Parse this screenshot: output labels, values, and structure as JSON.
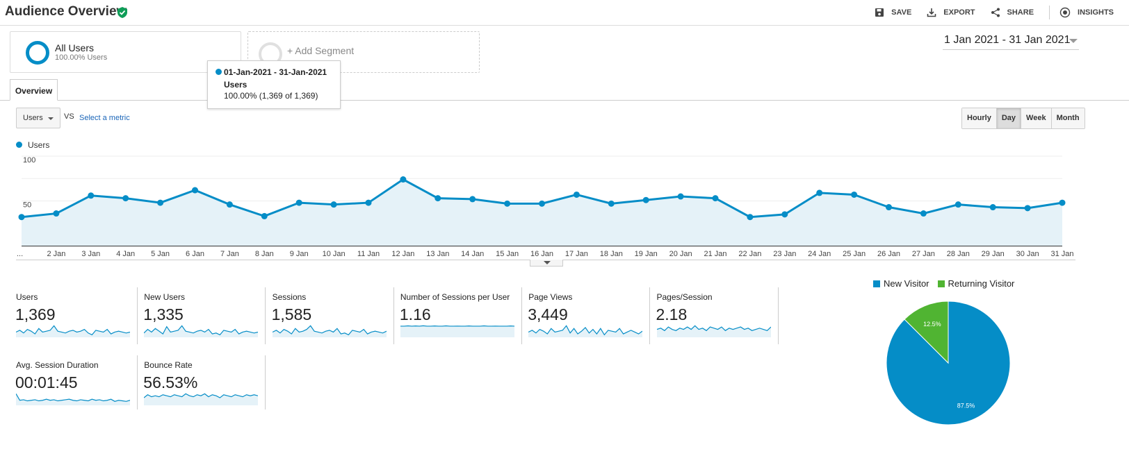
{
  "header": {
    "title": "Audience Overview",
    "actions": [
      {
        "label": "SAVE",
        "icon": "save-icon"
      },
      {
        "label": "EXPORT",
        "icon": "export-icon"
      },
      {
        "label": "SHARE",
        "icon": "share-icon"
      },
      {
        "label": "INSIGHTS",
        "icon": "insights-icon"
      }
    ]
  },
  "segment": {
    "name": "All Users",
    "sub": "100.00% Users"
  },
  "add_segment": "+ Add Segment",
  "date_range": "1 Jan 2021 - 31 Jan 2021",
  "tabs": [
    "Overview"
  ],
  "tooltip": {
    "range": "01-Jan-2021 - 31-Jan-2021",
    "metric": "Users",
    "value": "100.00% (1,369 of 1,369)"
  },
  "controls": {
    "metric": "Users",
    "vs": "VS",
    "select_metric": "Select a metric",
    "granularity": [
      "Hourly",
      "Day",
      "Week",
      "Month"
    ],
    "active_granularity": "Day"
  },
  "chart_data": {
    "type": "area",
    "series": [
      {
        "name": "Users",
        "values": [
          32,
          36,
          56,
          53,
          48,
          62,
          46,
          33,
          48,
          46,
          48,
          74,
          53,
          52,
          47,
          47,
          57,
          47,
          51,
          55,
          53,
          32,
          35,
          59,
          57,
          43,
          36,
          46,
          43,
          42,
          48
        ]
      }
    ],
    "x": [
      "...",
      "2 Jan",
      "3 Jan",
      "4 Jan",
      "5 Jan",
      "6 Jan",
      "7 Jan",
      "8 Jan",
      "9 Jan",
      "10 Jan",
      "11 Jan",
      "12 Jan",
      "13 Jan",
      "14 Jan",
      "15 Jan",
      "16 Jan",
      "17 Jan",
      "18 Jan",
      "19 Jan",
      "20 Jan",
      "21 Jan",
      "22 Jan",
      "23 Jan",
      "24 Jan",
      "25 Jan",
      "26 Jan",
      "27 Jan",
      "28 Jan",
      "29 Jan",
      "30 Jan",
      "31 Jan"
    ],
    "y_ticks": [
      "100",
      "50"
    ],
    "ylim": [
      0,
      100
    ],
    "color": "#058dc7",
    "fill": "#e5f2f8"
  },
  "metrics": [
    {
      "name": "Users",
      "value": "1,369",
      "spark": [
        5,
        7,
        4,
        8,
        6,
        3,
        9,
        5,
        6,
        7,
        12,
        6,
        5,
        4,
        6,
        7,
        5,
        6,
        8,
        4,
        2,
        7,
        6,
        5,
        8,
        3,
        5,
        6,
        5,
        4,
        5
      ]
    },
    {
      "name": "New Users",
      "value": "1,335",
      "spark": [
        4,
        8,
        5,
        9,
        6,
        3,
        11,
        5,
        6,
        7,
        12,
        6,
        5,
        4,
        6,
        7,
        5,
        8,
        3,
        4,
        2,
        7,
        6,
        5,
        8,
        3,
        5,
        6,
        5,
        4,
        5
      ]
    },
    {
      "name": "Sessions",
      "value": "1,585",
      "spark": [
        5,
        7,
        4,
        8,
        6,
        3,
        9,
        5,
        6,
        8,
        12,
        6,
        5,
        4,
        6,
        7,
        5,
        9,
        3,
        4,
        2,
        7,
        6,
        5,
        8,
        3,
        5,
        6,
        5,
        4,
        6
      ]
    },
    {
      "name": "Number of Sessions per User",
      "value": "1.16",
      "spark": [
        10,
        10,
        10.3,
        10,
        10.2,
        10,
        10.4,
        10,
        10,
        10.2,
        10,
        10,
        10.3,
        10,
        10,
        10.1,
        10,
        10,
        10.2,
        10,
        10,
        10,
        10.3,
        10,
        10,
        10.1,
        10,
        10,
        10,
        10.2,
        10
      ]
    },
    {
      "name": "Page Views",
      "value": "3,449",
      "spark": [
        5,
        7,
        4,
        8,
        6,
        3,
        9,
        5,
        6,
        7,
        12,
        4,
        9,
        3,
        6,
        10,
        4,
        8,
        3,
        9,
        2,
        7,
        6,
        5,
        9,
        3,
        5,
        7,
        5,
        3,
        6
      ]
    },
    {
      "name": "Pages/Session",
      "value": "2.18",
      "spark": [
        6,
        7,
        5,
        8,
        6,
        5,
        7,
        6,
        8,
        6,
        9,
        6,
        7,
        5,
        8,
        7,
        6,
        8,
        5,
        7,
        6,
        7,
        8,
        6,
        7,
        5,
        6,
        7,
        6,
        5,
        8
      ]
    },
    {
      "name": "Avg. Session Duration",
      "value": "00:01:45",
      "spark": [
        20,
        8,
        9,
        7,
        8,
        9,
        7,
        8,
        10,
        8,
        9,
        7,
        8,
        9,
        10,
        8,
        7,
        9,
        8,
        7,
        10,
        8,
        9,
        7,
        8,
        10,
        6,
        8,
        7,
        6,
        8
      ]
    },
    {
      "name": "Bounce Rate",
      "value": "56.53%",
      "spark": [
        7,
        10,
        8,
        9,
        8,
        10,
        9,
        8,
        10,
        9,
        8,
        11,
        9,
        8,
        10,
        9,
        11,
        8,
        10,
        9,
        7,
        10,
        9,
        8,
        10,
        9,
        8,
        10,
        9,
        10,
        9
      ]
    }
  ],
  "pie": {
    "legend": [
      {
        "label": "New Visitor",
        "color": "#058dc7"
      },
      {
        "label": "Returning Visitor",
        "color": "#50b432"
      }
    ],
    "slices": [
      {
        "label": "87.5%",
        "value": 87.5,
        "color": "#058dc7"
      },
      {
        "label": "12.5%",
        "value": 12.5,
        "color": "#50b432"
      }
    ]
  }
}
